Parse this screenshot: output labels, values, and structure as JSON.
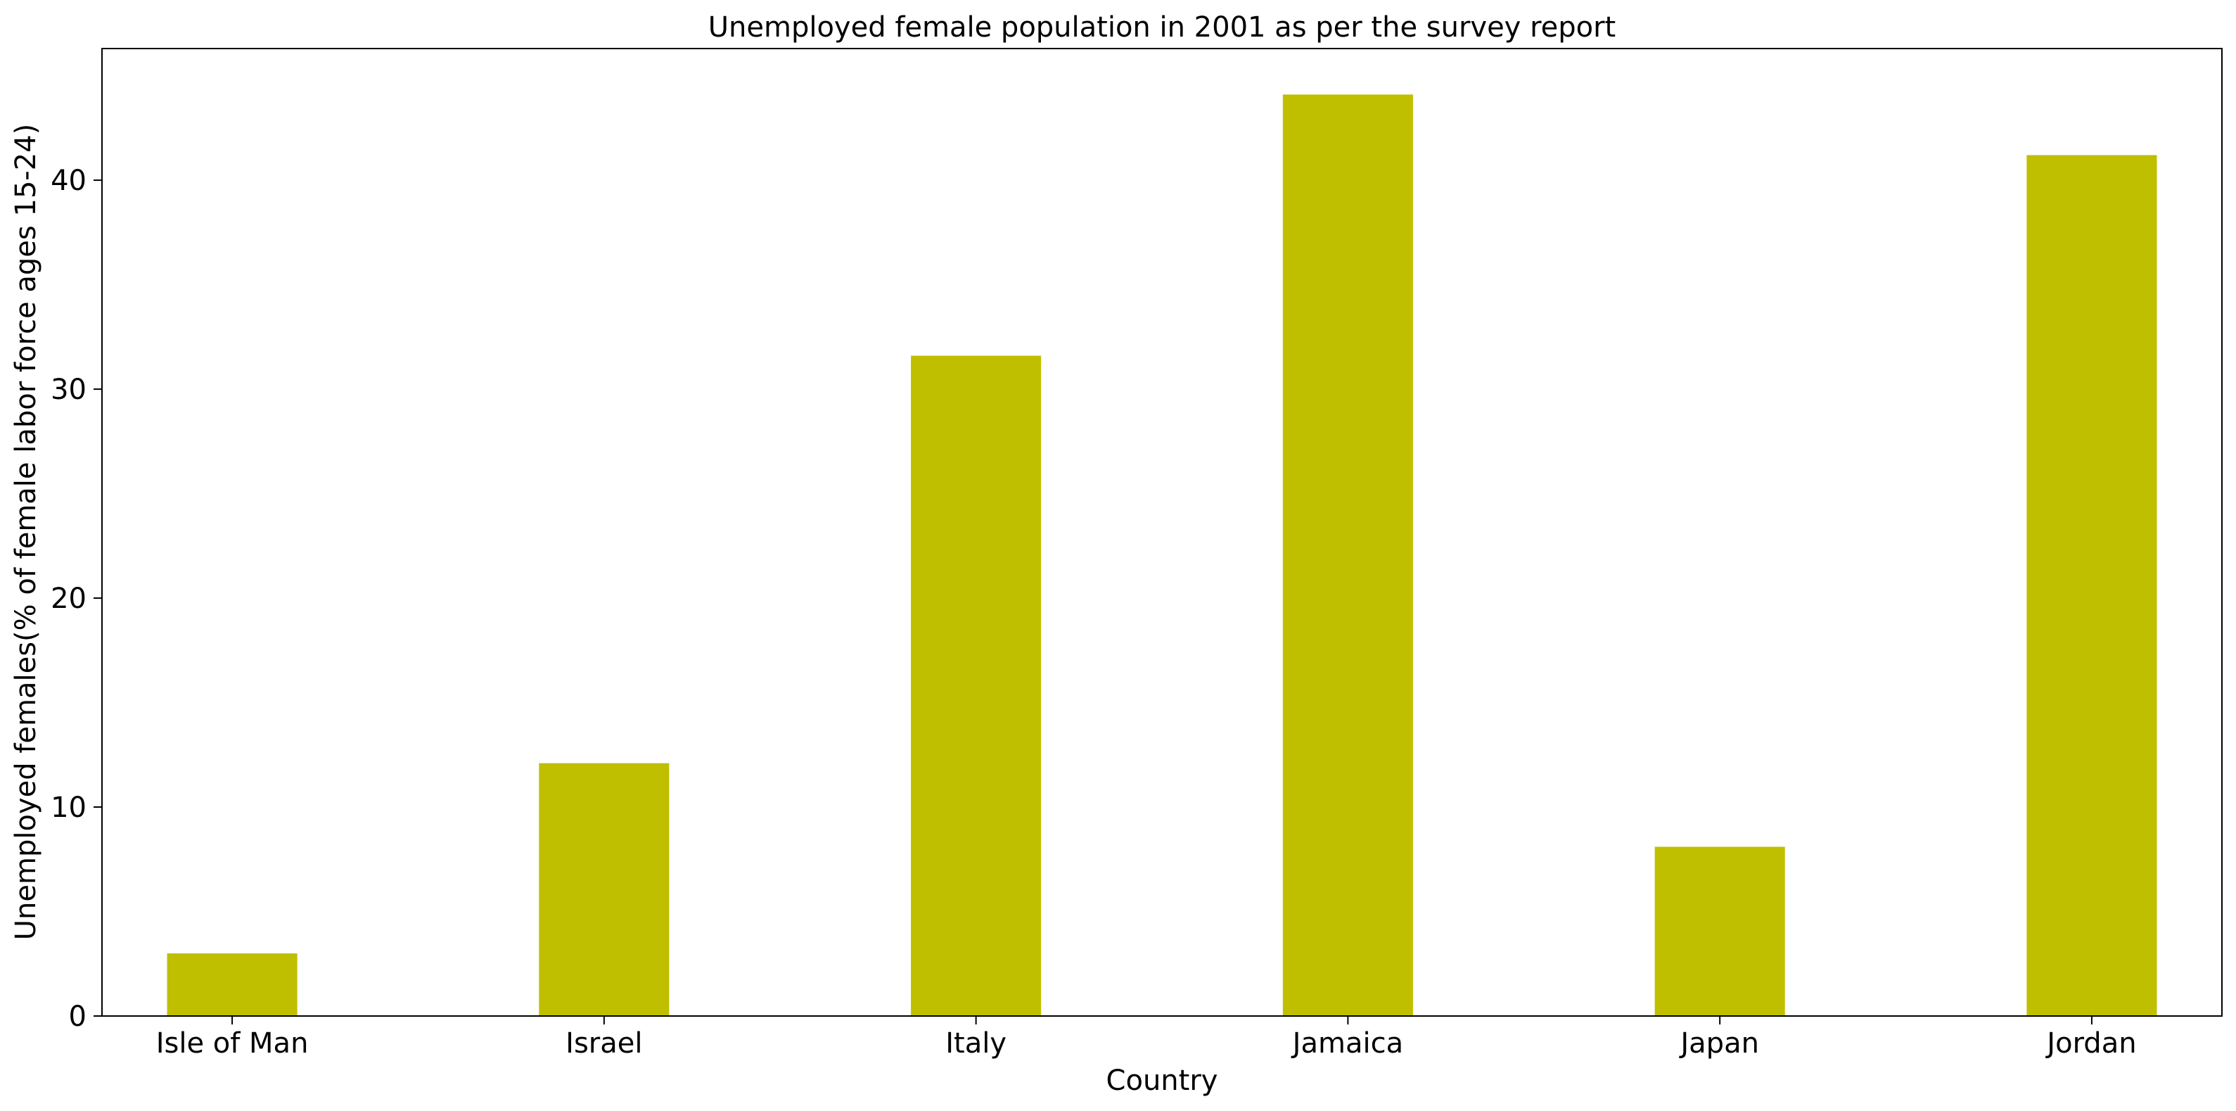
{
  "chart_data": {
    "type": "bar",
    "title": "Unemployed female population in 2001 as per the survey report",
    "xlabel": "Country",
    "ylabel": "Unemployed females(% of female labor force ages 15-24)",
    "categories": [
      "Isle of Man",
      "Israel",
      "Italy",
      "Jamaica",
      "Japan",
      "Jordan"
    ],
    "values": [
      3.0,
      12.1,
      31.6,
      44.1,
      8.1,
      41.2
    ],
    "ylim": [
      0,
      46.3
    ],
    "yticks": [
      0,
      10,
      20,
      30,
      40
    ],
    "grid": false,
    "legend": "none",
    "bar_color": "#bfbf00"
  }
}
